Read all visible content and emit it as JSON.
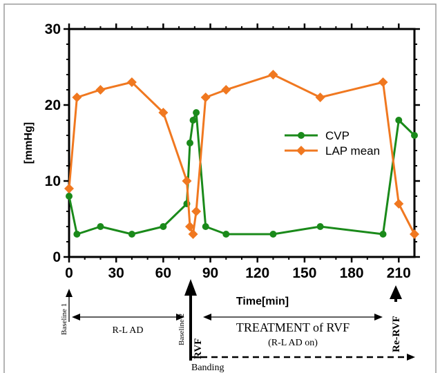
{
  "chart_data": {
    "type": "line",
    "xlabel": "Time[min]",
    "ylabel": "[mmHg]",
    "xlim": [
      0,
      220
    ],
    "ylim": [
      0,
      30
    ],
    "xticks": [
      0,
      30,
      60,
      90,
      120,
      150,
      180,
      210
    ],
    "yticks": [
      0,
      10,
      20,
      30
    ],
    "grid": false,
    "legend_position": "right",
    "series": [
      {
        "name": "CVP",
        "color": "#1a8a1a",
        "marker": "circle",
        "x": [
          0,
          5,
          20,
          40,
          60,
          75,
          77,
          79,
          81,
          87,
          100,
          130,
          160,
          200,
          210,
          220
        ],
        "y": [
          8,
          3,
          4,
          3,
          4,
          7,
          15,
          18,
          19,
          4,
          3,
          3,
          4,
          3,
          18,
          16
        ]
      },
      {
        "name": "LAP mean",
        "color": "#f07820",
        "marker": "diamond",
        "x": [
          0,
          5,
          20,
          40,
          60,
          75,
          77,
          79,
          81,
          87,
          100,
          130,
          160,
          200,
          210,
          220
        ],
        "y": [
          9,
          21,
          22,
          23,
          19,
          10,
          4,
          3,
          6,
          21,
          22,
          24,
          21,
          23,
          7,
          3
        ]
      }
    ]
  },
  "annotations": {
    "baseline1": "Baseline 1",
    "rl_ad": "R-L AD",
    "baseline2": "Baseline 2",
    "rvf": "RVF",
    "treatment": "TREATMENT of RVF",
    "treatment_sub": "(R-L AD on)",
    "re_rvf": "Re-RVF",
    "banding": "Banding"
  }
}
